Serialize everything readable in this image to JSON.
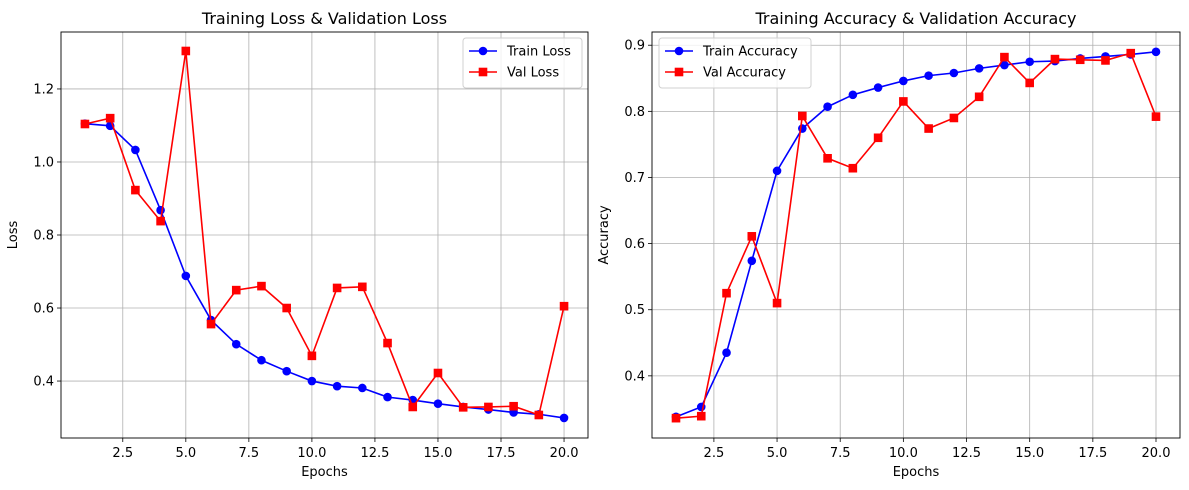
{
  "chart_data": [
    {
      "type": "line",
      "title": "Training Loss & Validation Loss",
      "xlabel": "Epochs",
      "ylabel": "Loss",
      "xlim": [
        0.05,
        20.95
      ],
      "ylim": [
        0.244,
        1.356
      ],
      "xticks": [
        2.5,
        5.0,
        7.5,
        10.0,
        12.5,
        15.0,
        17.5,
        20.0
      ],
      "yticks": [
        0.4,
        0.6,
        0.8,
        1.0,
        1.2
      ],
      "grid": true,
      "legend": "top-right",
      "x": [
        1,
        2,
        3,
        4,
        5,
        6,
        7,
        8,
        9,
        10,
        11,
        12,
        13,
        14,
        15,
        16,
        17,
        18,
        19,
        20
      ],
      "series": [
        {
          "name": "Train Loss",
          "color": "#0000ff",
          "marker": "circle",
          "values": [
            1.105,
            1.099,
            1.033,
            0.868,
            0.688,
            0.567,
            0.501,
            0.457,
            0.427,
            0.4,
            0.386,
            0.381,
            0.356,
            0.348,
            0.338,
            0.329,
            0.322,
            0.314,
            0.309,
            0.299
          ]
        },
        {
          "name": "Val Loss",
          "color": "#ff0000",
          "marker": "square",
          "values": [
            1.104,
            1.12,
            0.923,
            0.838,
            1.304,
            0.556,
            0.649,
            0.66,
            0.6,
            0.469,
            0.655,
            0.658,
            0.504,
            0.329,
            0.422,
            0.328,
            0.329,
            0.331,
            0.307,
            0.605
          ]
        }
      ]
    },
    {
      "type": "line",
      "title": "Training Accuracy & Validation Accuracy",
      "xlabel": "Epochs",
      "ylabel": "Accuracy",
      "xlim": [
        0.05,
        20.95
      ],
      "ylim": [
        0.306,
        0.92
      ],
      "xticks": [
        2.5,
        5.0,
        7.5,
        10.0,
        12.5,
        15.0,
        17.5,
        20.0
      ],
      "yticks": [
        0.4,
        0.5,
        0.6,
        0.7,
        0.8,
        0.9
      ],
      "grid": true,
      "legend": "top-left",
      "x": [
        1,
        2,
        3,
        4,
        5,
        6,
        7,
        8,
        9,
        10,
        11,
        12,
        13,
        14,
        15,
        16,
        17,
        18,
        19,
        20
      ],
      "series": [
        {
          "name": "Train Accuracy",
          "color": "#0000ff",
          "marker": "circle",
          "values": [
            0.338,
            0.353,
            0.435,
            0.574,
            0.71,
            0.774,
            0.807,
            0.825,
            0.836,
            0.846,
            0.854,
            0.858,
            0.865,
            0.87,
            0.875,
            0.876,
            0.88,
            0.883,
            0.886,
            0.89
          ]
        },
        {
          "name": "Val Accuracy",
          "color": "#ff0000",
          "marker": "square",
          "values": [
            0.336,
            0.339,
            0.525,
            0.611,
            0.51,
            0.793,
            0.729,
            0.714,
            0.76,
            0.815,
            0.774,
            0.79,
            0.822,
            0.882,
            0.843,
            0.879,
            0.878,
            0.877,
            0.888,
            0.792
          ]
        }
      ]
    }
  ]
}
